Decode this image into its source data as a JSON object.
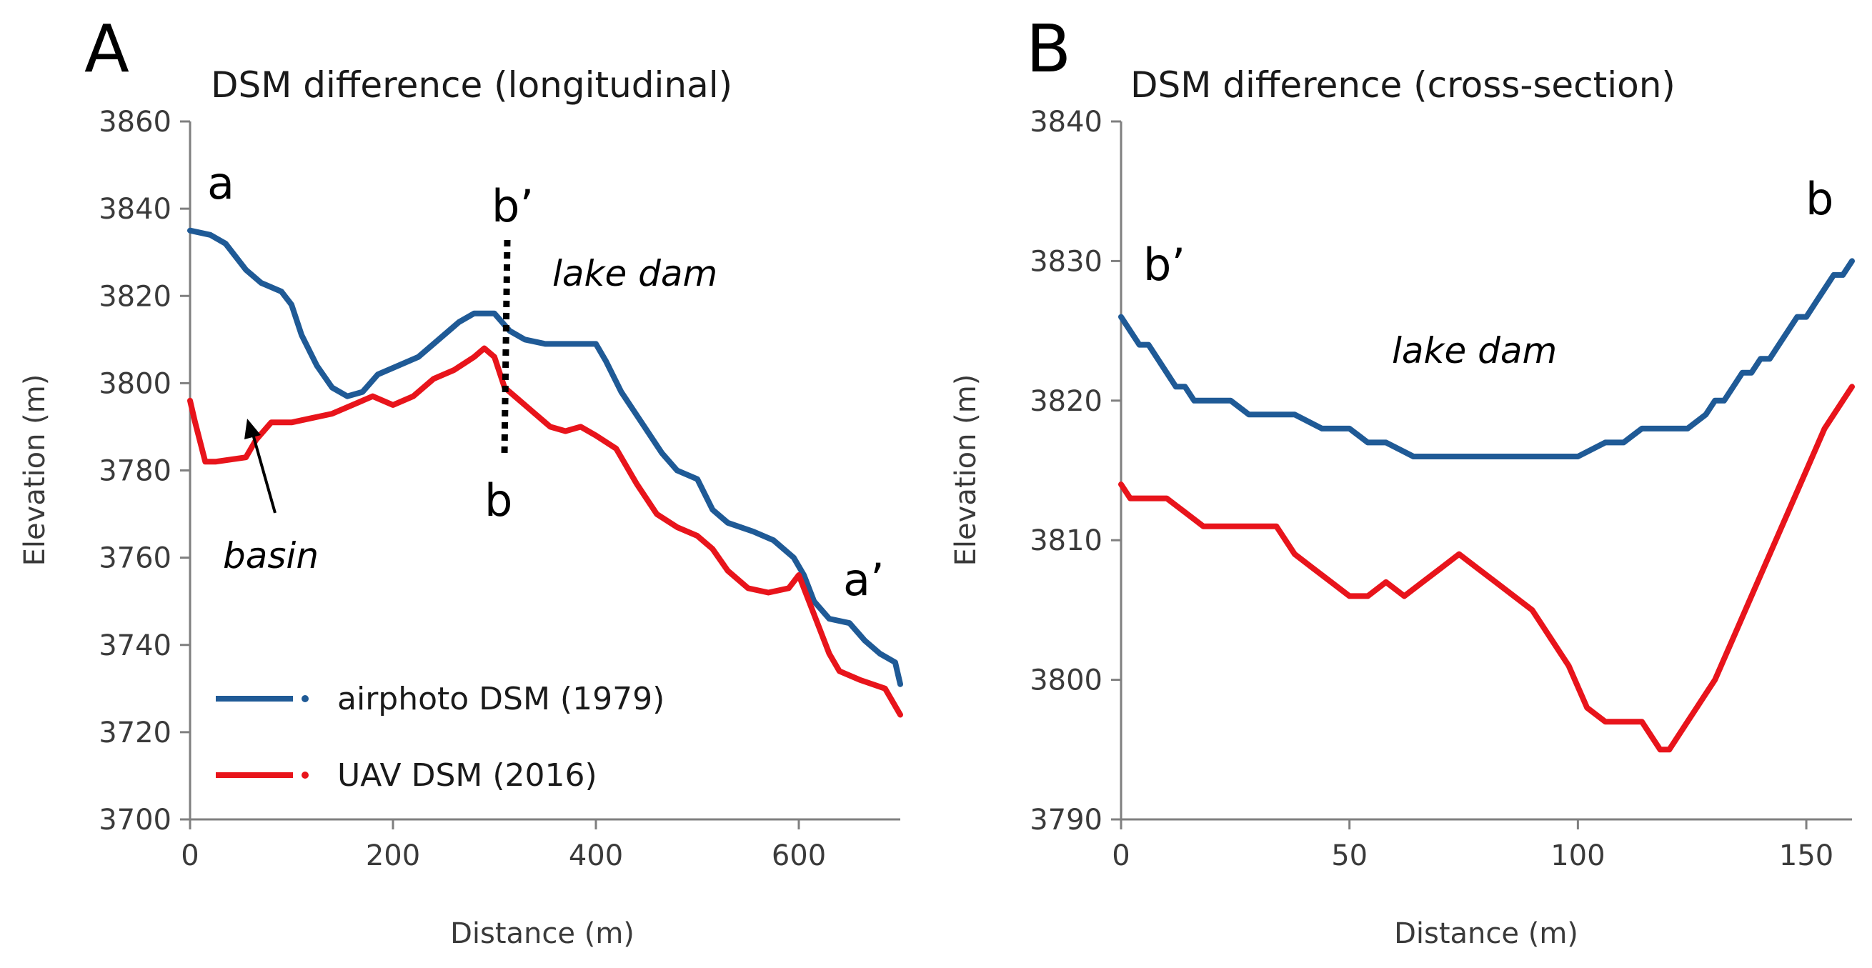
{
  "chart_data": [
    {
      "panel": "A",
      "type": "line",
      "title": "DSM difference (longitudinal)",
      "xlabel": "Distance (m)",
      "ylabel": "Elevation (m)",
      "xlim": [
        0,
        700
      ],
      "ylim": [
        3700,
        3860
      ],
      "xticks": [
        0,
        200,
        400,
        600
      ],
      "yticks": [
        3700,
        3720,
        3740,
        3760,
        3780,
        3800,
        3820,
        3840,
        3860
      ],
      "grid": false,
      "legend_position": "bottom-left",
      "colors": {
        "airphoto": "#1f5a96",
        "uav": "#e8141b"
      },
      "series": [
        {
          "name": "airphoto DSM (1979)",
          "key": "airphoto",
          "x": [
            0,
            20,
            35,
            55,
            70,
            90,
            100,
            110,
            125,
            140,
            155,
            170,
            185,
            205,
            225,
            245,
            265,
            280,
            300,
            315,
            330,
            350,
            380,
            400,
            410,
            425,
            445,
            465,
            480,
            500,
            515,
            530,
            555,
            575,
            595,
            605,
            615,
            630,
            650,
            665,
            680,
            695,
            700
          ],
          "values": [
            3835,
            3834,
            3832,
            3826,
            3823,
            3821,
            3818,
            3811,
            3804,
            3799,
            3797,
            3798,
            3802,
            3804,
            3806,
            3810,
            3814,
            3816,
            3816,
            3812,
            3810,
            3809,
            3809,
            3809,
            3805,
            3798,
            3791,
            3784,
            3780,
            3778,
            3771,
            3768,
            3766,
            3764,
            3760,
            3756,
            3750,
            3746,
            3745,
            3741,
            3738,
            3736,
            3731
          ]
        },
        {
          "name": "UAV DSM (2016)",
          "key": "uav",
          "x": [
            0,
            5,
            15,
            25,
            55,
            65,
            80,
            100,
            120,
            140,
            160,
            180,
            200,
            220,
            240,
            260,
            280,
            290,
            300,
            310,
            320,
            340,
            355,
            370,
            385,
            400,
            420,
            440,
            460,
            480,
            500,
            515,
            530,
            550,
            570,
            590,
            600,
            610,
            620,
            630,
            640,
            660,
            685,
            700
          ],
          "values": [
            3796,
            3791,
            3782,
            3782,
            3783,
            3787,
            3791,
            3791,
            3792,
            3793,
            3795,
            3797,
            3795,
            3797,
            3801,
            3803,
            3806,
            3808,
            3806,
            3799,
            3797,
            3793,
            3790,
            3789,
            3790,
            3788,
            3785,
            3777,
            3770,
            3767,
            3765,
            3762,
            3757,
            3753,
            3752,
            3753,
            3756,
            3750,
            3744,
            3738,
            3734,
            3732,
            3730,
            3724
          ]
        }
      ],
      "annotations": {
        "start_label": "a",
        "end_label": "a’",
        "section_top_label": "b’",
        "section_bottom_label": "b",
        "feature_label": "lake dam",
        "basin_label": "basin"
      }
    },
    {
      "panel": "B",
      "type": "line",
      "title": "DSM difference (cross-section)",
      "xlabel": "Distance (m)",
      "ylabel": "Elevation (m)",
      "xlim": [
        0,
        160
      ],
      "ylim": [
        3790,
        3840
      ],
      "xticks": [
        0,
        50,
        100,
        150
      ],
      "yticks": [
        3790,
        3800,
        3810,
        3820,
        3830,
        3840
      ],
      "grid": false,
      "colors": {
        "airphoto": "#1f5a96",
        "uav": "#e8141b"
      },
      "series": [
        {
          "name": "airphoto DSM (1979)",
          "key": "airphoto",
          "x": [
            0,
            2,
            4,
            6,
            8,
            10,
            12,
            14,
            16,
            18,
            24,
            28,
            34,
            38,
            44,
            50,
            54,
            58,
            64,
            70,
            80,
            90,
            100,
            106,
            110,
            114,
            118,
            124,
            128,
            130,
            132,
            134,
            136,
            138,
            140,
            142,
            144,
            146,
            148,
            150,
            152,
            154,
            156,
            158,
            160
          ],
          "values": [
            3826,
            3825,
            3824,
            3824,
            3823,
            3822,
            3821,
            3821,
            3820,
            3820,
            3820,
            3819,
            3819,
            3819,
            3818,
            3818,
            3817,
            3817,
            3816,
            3816,
            3816,
            3816,
            3816,
            3817,
            3817,
            3818,
            3818,
            3818,
            3819,
            3820,
            3820,
            3821,
            3822,
            3822,
            3823,
            3823,
            3824,
            3825,
            3826,
            3826,
            3827,
            3828,
            3829,
            3829,
            3830
          ]
        },
        {
          "name": "UAV DSM (2016)",
          "key": "uav",
          "x": [
            0,
            2,
            6,
            10,
            14,
            18,
            22,
            26,
            30,
            34,
            38,
            42,
            46,
            50,
            54,
            58,
            62,
            66,
            70,
            74,
            78,
            82,
            86,
            90,
            94,
            98,
            102,
            106,
            110,
            114,
            118,
            120,
            122,
            124,
            126,
            128,
            130,
            134,
            138,
            142,
            146,
            150,
            154,
            158,
            160
          ],
          "values": [
            3814,
            3813,
            3813,
            3813,
            3812,
            3811,
            3811,
            3811,
            3811,
            3811,
            3809,
            3808,
            3807,
            3806,
            3806,
            3807,
            3806,
            3807,
            3808,
            3809,
            3808,
            3807,
            3806,
            3805,
            3803,
            3801,
            3798,
            3797,
            3797,
            3797,
            3795,
            3795,
            3796,
            3797,
            3798,
            3799,
            3800,
            3803,
            3806,
            3809,
            3812,
            3815,
            3818,
            3820,
            3821
          ]
        }
      ],
      "annotations": {
        "left_label": "b’",
        "right_label": "b",
        "feature_label": "lake dam"
      }
    }
  ]
}
